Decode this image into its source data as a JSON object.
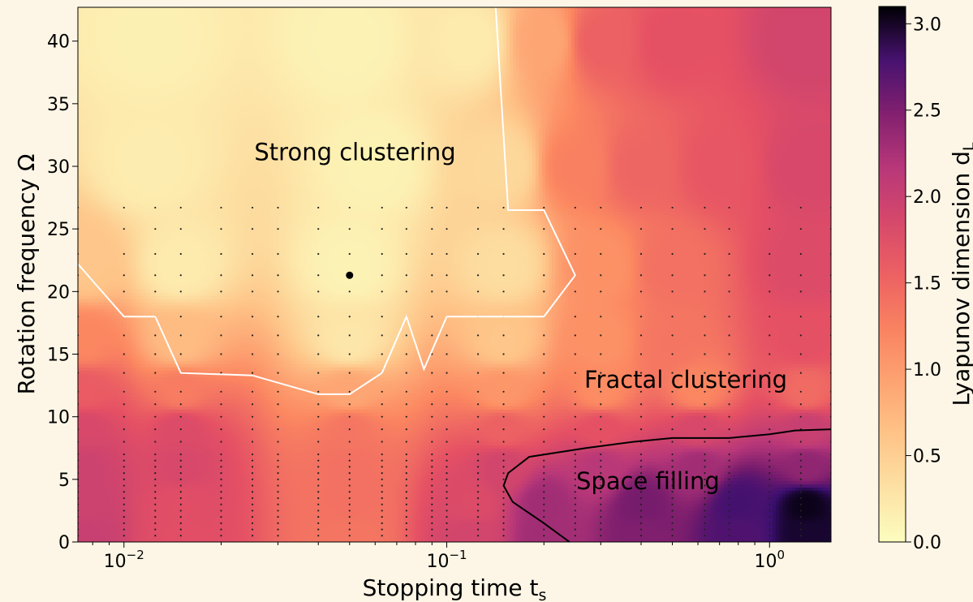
{
  "chart_data": {
    "type": "heatmap",
    "title": "",
    "xlabel": "Stopping time t_s",
    "xlabel_main": "Stopping time t",
    "xlabel_sub": "s",
    "ylabel": "Rotation frequency Ω",
    "x_scale": "log",
    "xlim": [
      0.0072,
      1.55
    ],
    "ylim": [
      0,
      42.7
    ],
    "x_ticks": [
      {
        "value": 0.01,
        "base": "10",
        "exp": "−2"
      },
      {
        "value": 0.1,
        "base": "10",
        "exp": "−1"
      },
      {
        "value": 1,
        "base": "10",
        "exp": "0"
      }
    ],
    "y_ticks": [
      0,
      5,
      10,
      15,
      20,
      25,
      30,
      35,
      40
    ],
    "colorbar": {
      "label": "Lyapunov dimension d_L",
      "label_main": "Lyapunov dimension d",
      "label_sub": "L",
      "range": [
        0,
        3.1
      ],
      "ticks": [
        "0.0",
        "0.5",
        "1.0",
        "1.5",
        "2.0",
        "2.5",
        "3.0"
      ],
      "colormap": "magma_r"
    },
    "annotations": [
      {
        "text": "Strong clustering",
        "x": 0.052,
        "y": 30.5
      },
      {
        "text": "Fractal clustering",
        "x": 0.55,
        "y": 12.3
      },
      {
        "text": "Space filling",
        "x": 0.42,
        "y": 4.2
      }
    ],
    "marked_point": {
      "x": 0.05,
      "y": 21.3
    },
    "sample_grid": {
      "x": [
        0.0072,
        0.01,
        0.0125,
        0.015,
        0.02,
        0.025,
        0.03,
        0.04,
        0.05,
        0.063,
        0.075,
        0.09,
        0.1,
        0.125,
        0.15,
        0.2,
        0.25,
        0.3,
        0.4,
        0.5,
        0.63,
        0.75,
        1.0,
        1.25,
        1.55
      ],
      "y": [
        0.5,
        1,
        1.5,
        2,
        2.5,
        3,
        3.5,
        4,
        4.5,
        5,
        5.5,
        6,
        6.5,
        7,
        8,
        9,
        10,
        11,
        12,
        13.5,
        15,
        16.5,
        18,
        20,
        21.3,
        23,
        25,
        26.7
      ]
    },
    "contours": [
      {
        "level": 1.0,
        "color": "#ffffff",
        "points": [
          [
            0.0072,
            22.2
          ],
          [
            0.01,
            18
          ],
          [
            0.0125,
            18
          ],
          [
            0.015,
            13.5
          ],
          [
            0.025,
            13.3
          ],
          [
            0.04,
            11.8
          ],
          [
            0.05,
            11.8
          ],
          [
            0.063,
            13.5
          ],
          [
            0.075,
            18
          ],
          [
            0.085,
            13.8
          ],
          [
            0.1,
            18
          ],
          [
            0.15,
            18
          ],
          [
            0.2,
            18
          ],
          [
            0.25,
            21.3
          ],
          [
            0.2,
            26.5
          ],
          [
            0.155,
            26.5
          ],
          [
            0.14,
            45
          ]
        ]
      },
      {
        "level": 2.0,
        "color": "#000000",
        "points": [
          [
            0.24,
            0
          ],
          [
            0.2,
            1.5
          ],
          [
            0.16,
            3.2
          ],
          [
            0.15,
            4.5
          ],
          [
            0.155,
            5.5
          ],
          [
            0.18,
            6.8
          ],
          [
            0.27,
            7.5
          ],
          [
            0.38,
            8
          ],
          [
            0.5,
            8.3
          ],
          [
            0.75,
            8.3
          ],
          [
            1.0,
            8.6
          ],
          [
            1.2,
            8.9
          ],
          [
            1.55,
            9.0
          ]
        ]
      }
    ],
    "field_samples": [
      {
        "x": 0.012,
        "y": 40,
        "v": 0.15
      },
      {
        "x": 0.05,
        "y": 40,
        "v": 0.12
      },
      {
        "x": 0.12,
        "y": 40,
        "v": 0.2
      },
      {
        "x": 0.2,
        "y": 40,
        "v": 0.9
      },
      {
        "x": 0.3,
        "y": 40,
        "v": 1.55
      },
      {
        "x": 0.5,
        "y": 40,
        "v": 1.7
      },
      {
        "x": 1.3,
        "y": 40,
        "v": 1.9
      },
      {
        "x": 0.012,
        "y": 30,
        "v": 0.18
      },
      {
        "x": 0.06,
        "y": 30,
        "v": 0.12
      },
      {
        "x": 0.15,
        "y": 30,
        "v": 0.4
      },
      {
        "x": 0.25,
        "y": 30,
        "v": 1.25
      },
      {
        "x": 0.4,
        "y": 30,
        "v": 1.5
      },
      {
        "x": 0.7,
        "y": 30,
        "v": 1.65
      },
      {
        "x": 1.3,
        "y": 30,
        "v": 1.85
      },
      {
        "x": 0.0075,
        "y": 22,
        "v": 0.6
      },
      {
        "x": 0.015,
        "y": 22,
        "v": 0.2
      },
      {
        "x": 0.05,
        "y": 22,
        "v": 0.12
      },
      {
        "x": 0.15,
        "y": 22,
        "v": 0.35
      },
      {
        "x": 0.3,
        "y": 22,
        "v": 1.1
      },
      {
        "x": 0.5,
        "y": 22,
        "v": 1.4
      },
      {
        "x": 1.3,
        "y": 22,
        "v": 1.8
      },
      {
        "x": 0.0075,
        "y": 16,
        "v": 1.2
      },
      {
        "x": 0.015,
        "y": 16,
        "v": 0.7
      },
      {
        "x": 0.05,
        "y": 16,
        "v": 0.25
      },
      {
        "x": 0.15,
        "y": 16,
        "v": 0.6
      },
      {
        "x": 0.3,
        "y": 16,
        "v": 1.1
      },
      {
        "x": 0.5,
        "y": 16,
        "v": 1.35
      },
      {
        "x": 1.3,
        "y": 16,
        "v": 1.7
      },
      {
        "x": 0.0075,
        "y": 12,
        "v": 1.6
      },
      {
        "x": 0.015,
        "y": 12,
        "v": 1.3
      },
      {
        "x": 0.05,
        "y": 12,
        "v": 0.9
      },
      {
        "x": 0.15,
        "y": 12,
        "v": 1.05
      },
      {
        "x": 0.3,
        "y": 12,
        "v": 1.15
      },
      {
        "x": 0.6,
        "y": 12,
        "v": 1.2
      },
      {
        "x": 1.3,
        "y": 12,
        "v": 1.45
      },
      {
        "x": 0.0075,
        "y": 9,
        "v": 1.85
      },
      {
        "x": 0.015,
        "y": 9,
        "v": 1.8
      },
      {
        "x": 0.05,
        "y": 9,
        "v": 1.35
      },
      {
        "x": 0.15,
        "y": 9,
        "v": 1.55
      },
      {
        "x": 0.3,
        "y": 9,
        "v": 1.7
      },
      {
        "x": 0.6,
        "y": 9,
        "v": 1.85
      },
      {
        "x": 1.3,
        "y": 9,
        "v": 2.0
      },
      {
        "x": 0.0075,
        "y": 6,
        "v": 1.95
      },
      {
        "x": 0.015,
        "y": 6,
        "v": 1.85
      },
      {
        "x": 0.05,
        "y": 6,
        "v": 1.4
      },
      {
        "x": 0.15,
        "y": 6,
        "v": 1.9
      },
      {
        "x": 0.3,
        "y": 6,
        "v": 2.15
      },
      {
        "x": 0.6,
        "y": 6,
        "v": 2.3
      },
      {
        "x": 1.3,
        "y": 6,
        "v": 2.4
      },
      {
        "x": 0.0075,
        "y": 3,
        "v": 1.95
      },
      {
        "x": 0.015,
        "y": 3,
        "v": 1.75
      },
      {
        "x": 0.05,
        "y": 3,
        "v": 1.4
      },
      {
        "x": 0.12,
        "y": 3,
        "v": 1.8
      },
      {
        "x": 0.2,
        "y": 3,
        "v": 2.3
      },
      {
        "x": 0.4,
        "y": 3,
        "v": 2.55
      },
      {
        "x": 0.8,
        "y": 3,
        "v": 2.8
      },
      {
        "x": 1.3,
        "y": 3,
        "v": 3.05
      },
      {
        "x": 0.0075,
        "y": 0.5,
        "v": 2.0
      },
      {
        "x": 0.015,
        "y": 0.5,
        "v": 1.75
      },
      {
        "x": 0.05,
        "y": 0.5,
        "v": 1.35
      },
      {
        "x": 0.12,
        "y": 0.5,
        "v": 1.9
      },
      {
        "x": 0.2,
        "y": 0.5,
        "v": 2.3
      },
      {
        "x": 0.4,
        "y": 0.5,
        "v": 2.5
      },
      {
        "x": 0.8,
        "y": 0.5,
        "v": 2.75
      },
      {
        "x": 1.3,
        "y": 0.5,
        "v": 3.0
      }
    ]
  }
}
